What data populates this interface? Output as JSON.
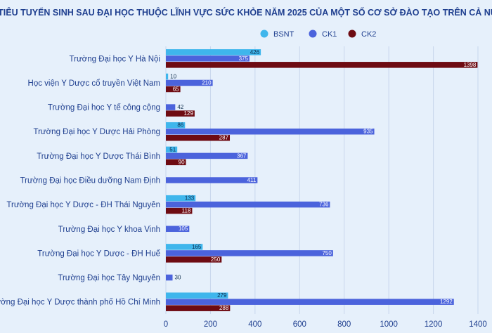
{
  "chart_data": {
    "type": "bar",
    "orientation": "horizontal",
    "title": "CHỈ TIÊU TUYỂN SINH SAU ĐẠI HỌC THUỘC LĨNH VỰC SỨC KHỎE NĂM 2025  CỦA MỘT SỐ CƠ SỞ ĐÀO TẠO TRÊN CẢ NƯỚC",
    "xlabel": "",
    "ylabel": "",
    "xlim": [
      0,
      1400
    ],
    "xticks": [
      0,
      200,
      400,
      600,
      800,
      1000,
      1200,
      1400
    ],
    "grid": true,
    "legend_position": "top-right",
    "categories": [
      "Trường Đại học Y Hà Nội",
      "Học viện Y Dược cổ truyền Việt Nam",
      "Trường Đại học Y tế công cộng",
      "Trường Đại học Y Dược Hải Phòng",
      "Trường Đại học Y Dược Thái Bình",
      "Trường Đại học Điều dưỡng Nam Định",
      "Trường Đại học Y Dược - ĐH Thái Nguyên",
      "Trường Đại học Y khoa Vinh",
      "Trường Đại học Y Dược - ĐH Huế",
      "Trường Đại học Tây Nguyên",
      "Trường Đại học Y Dược thành phố Hồ Chí Minh"
    ],
    "series": [
      {
        "name": "BSNT",
        "color": "#3fb6ec",
        "values": [
          426,
          10,
          null,
          86,
          51,
          null,
          133,
          null,
          165,
          null,
          279
        ]
      },
      {
        "name": "CK1",
        "color": "#4b63dc",
        "values": [
          375,
          210,
          42,
          935,
          367,
          411,
          736,
          105,
          750,
          30,
          1292
        ]
      },
      {
        "name": "CK2",
        "color": "#6e0b12",
        "values": [
          1398,
          65,
          129,
          287,
          90,
          null,
          118,
          null,
          250,
          null,
          288
        ]
      }
    ]
  }
}
